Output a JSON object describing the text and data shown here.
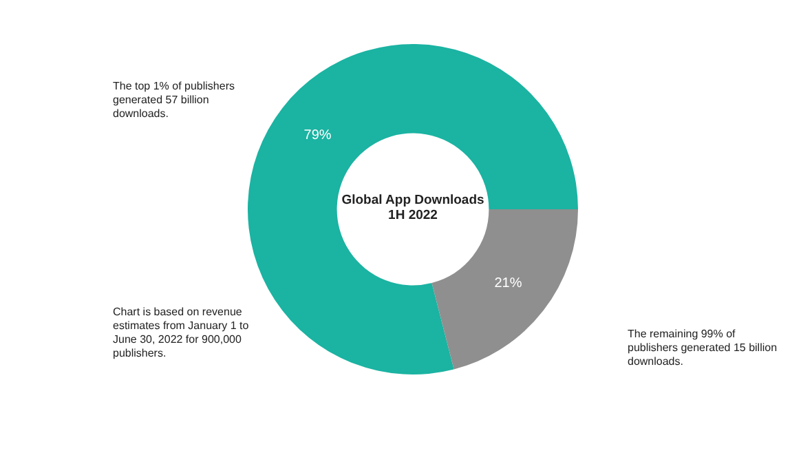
{
  "chart_data": {
    "type": "donut",
    "title": "Global App Downloads\n1H 2022",
    "categories": [
      null,
      null
    ],
    "values": [
      79,
      21
    ],
    "colors": [
      "#1bb3a2",
      "#8f8f8f"
    ],
    "value_labels": [
      "79%",
      "21%"
    ],
    "annotations": [
      "The top 1% of publishers generated 57 billion downloads.",
      "The remaining 99% of publishers generated 15 billion downloads.",
      "Chart is based on revenue estimates from January 1 to June 30, 2022 for 900,000 publishers."
    ],
    "legend": false
  }
}
